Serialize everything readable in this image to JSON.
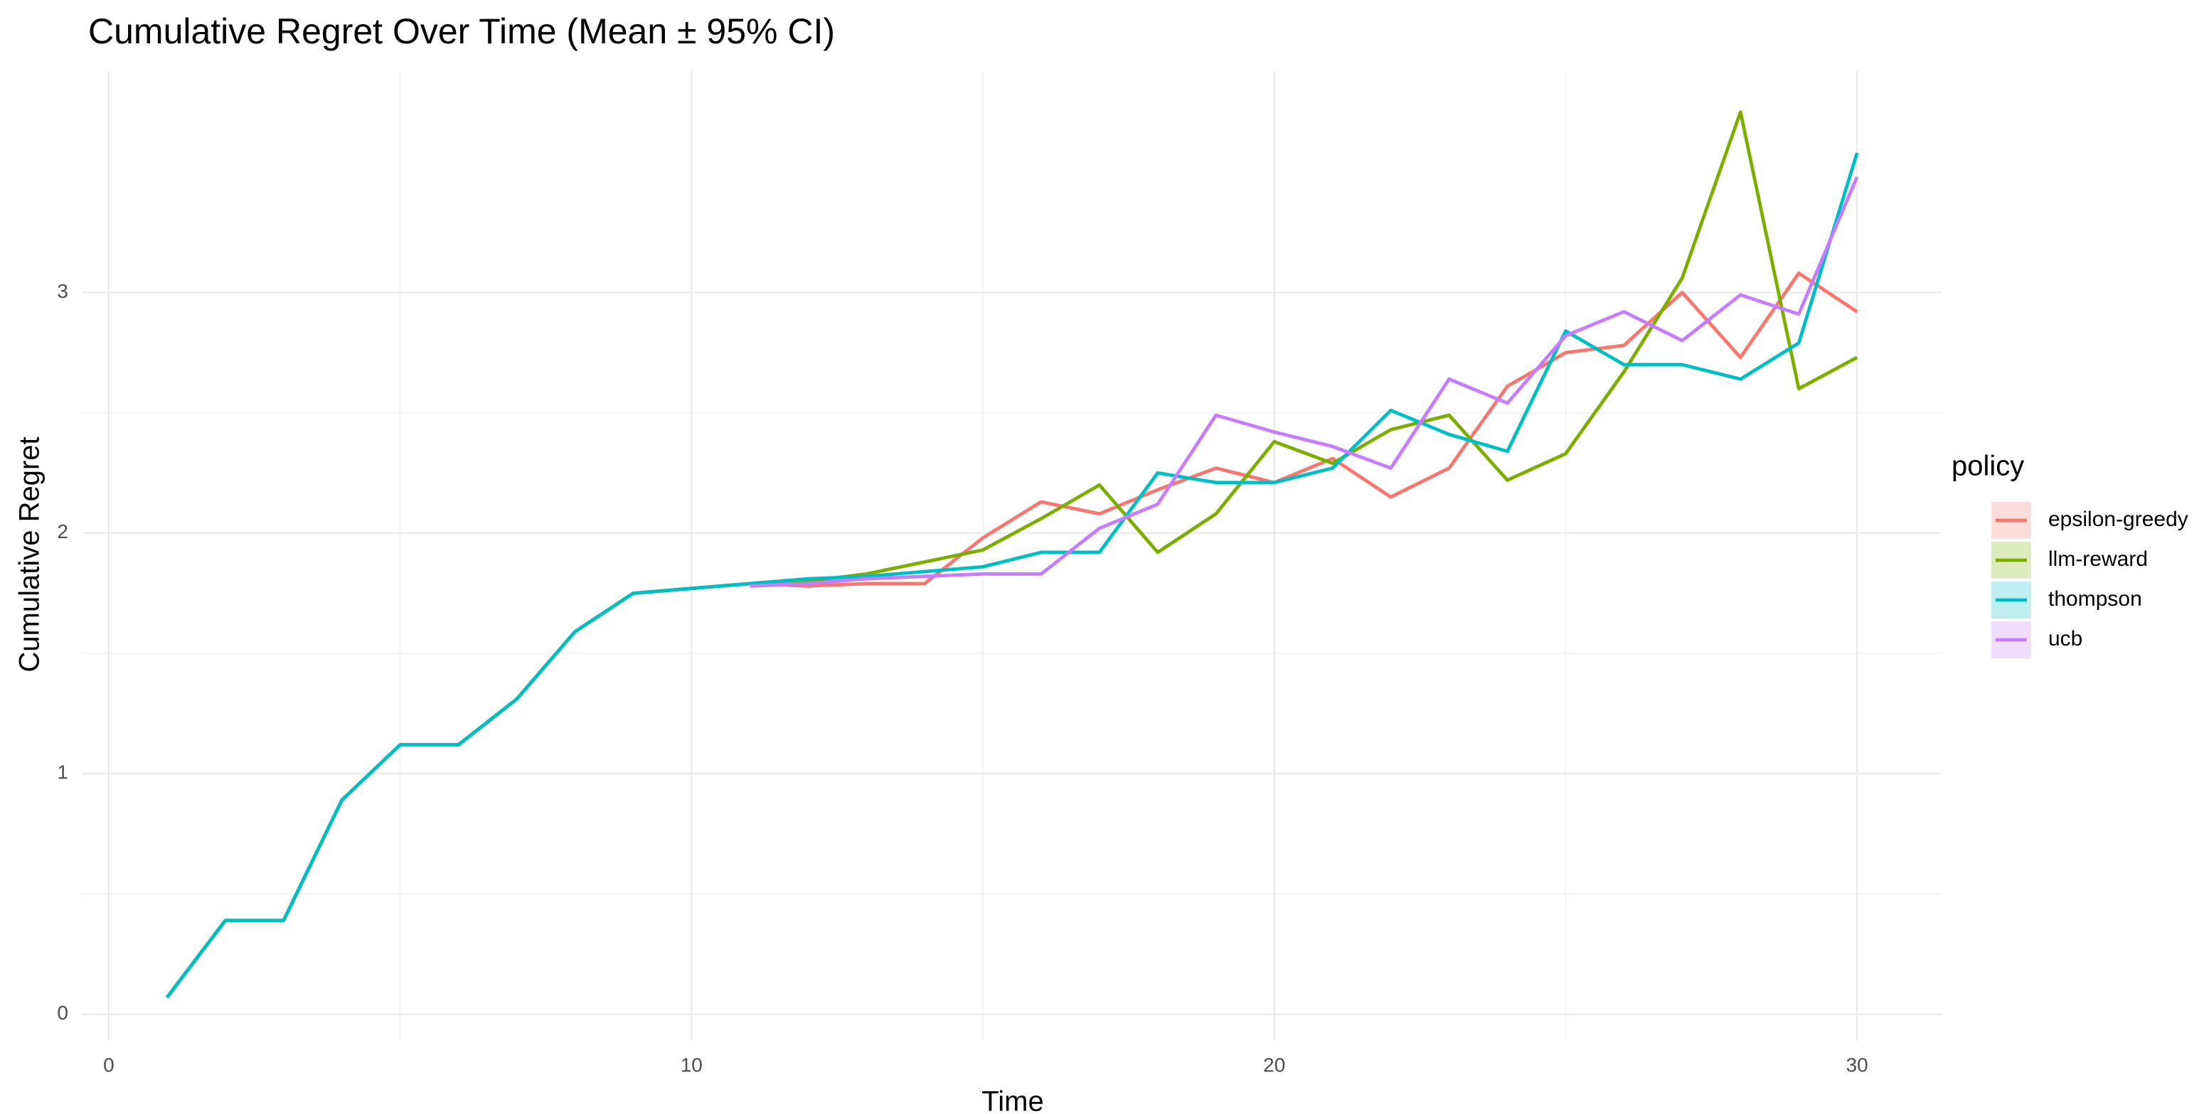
{
  "chart_data": {
    "type": "line",
    "title": "Cumulative Regret Over Time (Mean ± 95% CI)",
    "x_label": "Time",
    "y_label": "Cumulative Regret",
    "legend_title": "policy",
    "legend_position": "right",
    "grid": true,
    "x": [
      1,
      2,
      3,
      4,
      5,
      6,
      7,
      8,
      9,
      10,
      11,
      12,
      13,
      14,
      15,
      16,
      17,
      18,
      19,
      20,
      21,
      22,
      23,
      24,
      25,
      26,
      27,
      28,
      29,
      30
    ],
    "xlim": [
      -0.45,
      31.45
    ],
    "xticks": [
      0,
      10,
      20,
      30
    ],
    "ylim": [
      -0.11,
      3.92
    ],
    "yticks": [
      0,
      1,
      2,
      3
    ],
    "series": [
      {
        "name": "epsilon-greedy",
        "color": "#F8766D",
        "values": [
          0.07,
          0.39,
          0.39,
          0.89,
          1.12,
          1.12,
          1.31,
          1.59,
          1.75,
          1.77,
          1.79,
          1.78,
          1.79,
          1.79,
          1.98,
          2.13,
          2.08,
          2.18,
          2.27,
          2.21,
          2.31,
          2.15,
          2.27,
          2.61,
          2.75,
          2.78,
          3.0,
          2.73,
          3.08,
          2.92
        ]
      },
      {
        "name": "llm-reward",
        "color": "#7CAE00",
        "values": [
          0.07,
          0.39,
          0.39,
          0.89,
          1.12,
          1.12,
          1.31,
          1.59,
          1.75,
          1.77,
          1.79,
          1.8,
          1.83,
          1.88,
          1.93,
          2.06,
          2.2,
          1.92,
          2.08,
          2.38,
          2.29,
          2.43,
          2.49,
          2.22,
          2.33,
          2.67,
          3.06,
          3.75,
          2.6,
          2.73
        ]
      },
      {
        "name": "thompson",
        "color": "#00BFC4",
        "values": [
          0.07,
          0.39,
          0.39,
          0.89,
          1.12,
          1.12,
          1.31,
          1.59,
          1.75,
          1.77,
          1.79,
          1.81,
          1.82,
          1.84,
          1.86,
          1.92,
          1.92,
          2.25,
          2.21,
          2.21,
          2.27,
          2.51,
          2.41,
          2.34,
          2.84,
          2.7,
          2.7,
          2.64,
          2.79,
          3.58
        ]
      },
      {
        "name": "ucb",
        "color": "#C77CFF",
        "values": [
          null,
          null,
          null,
          null,
          null,
          null,
          null,
          null,
          null,
          null,
          1.78,
          1.79,
          1.81,
          1.82,
          1.83,
          1.83,
          2.02,
          2.12,
          2.49,
          2.42,
          2.36,
          2.27,
          2.64,
          2.54,
          2.82,
          2.92,
          2.8,
          2.99,
          2.91,
          3.48
        ]
      }
    ]
  }
}
